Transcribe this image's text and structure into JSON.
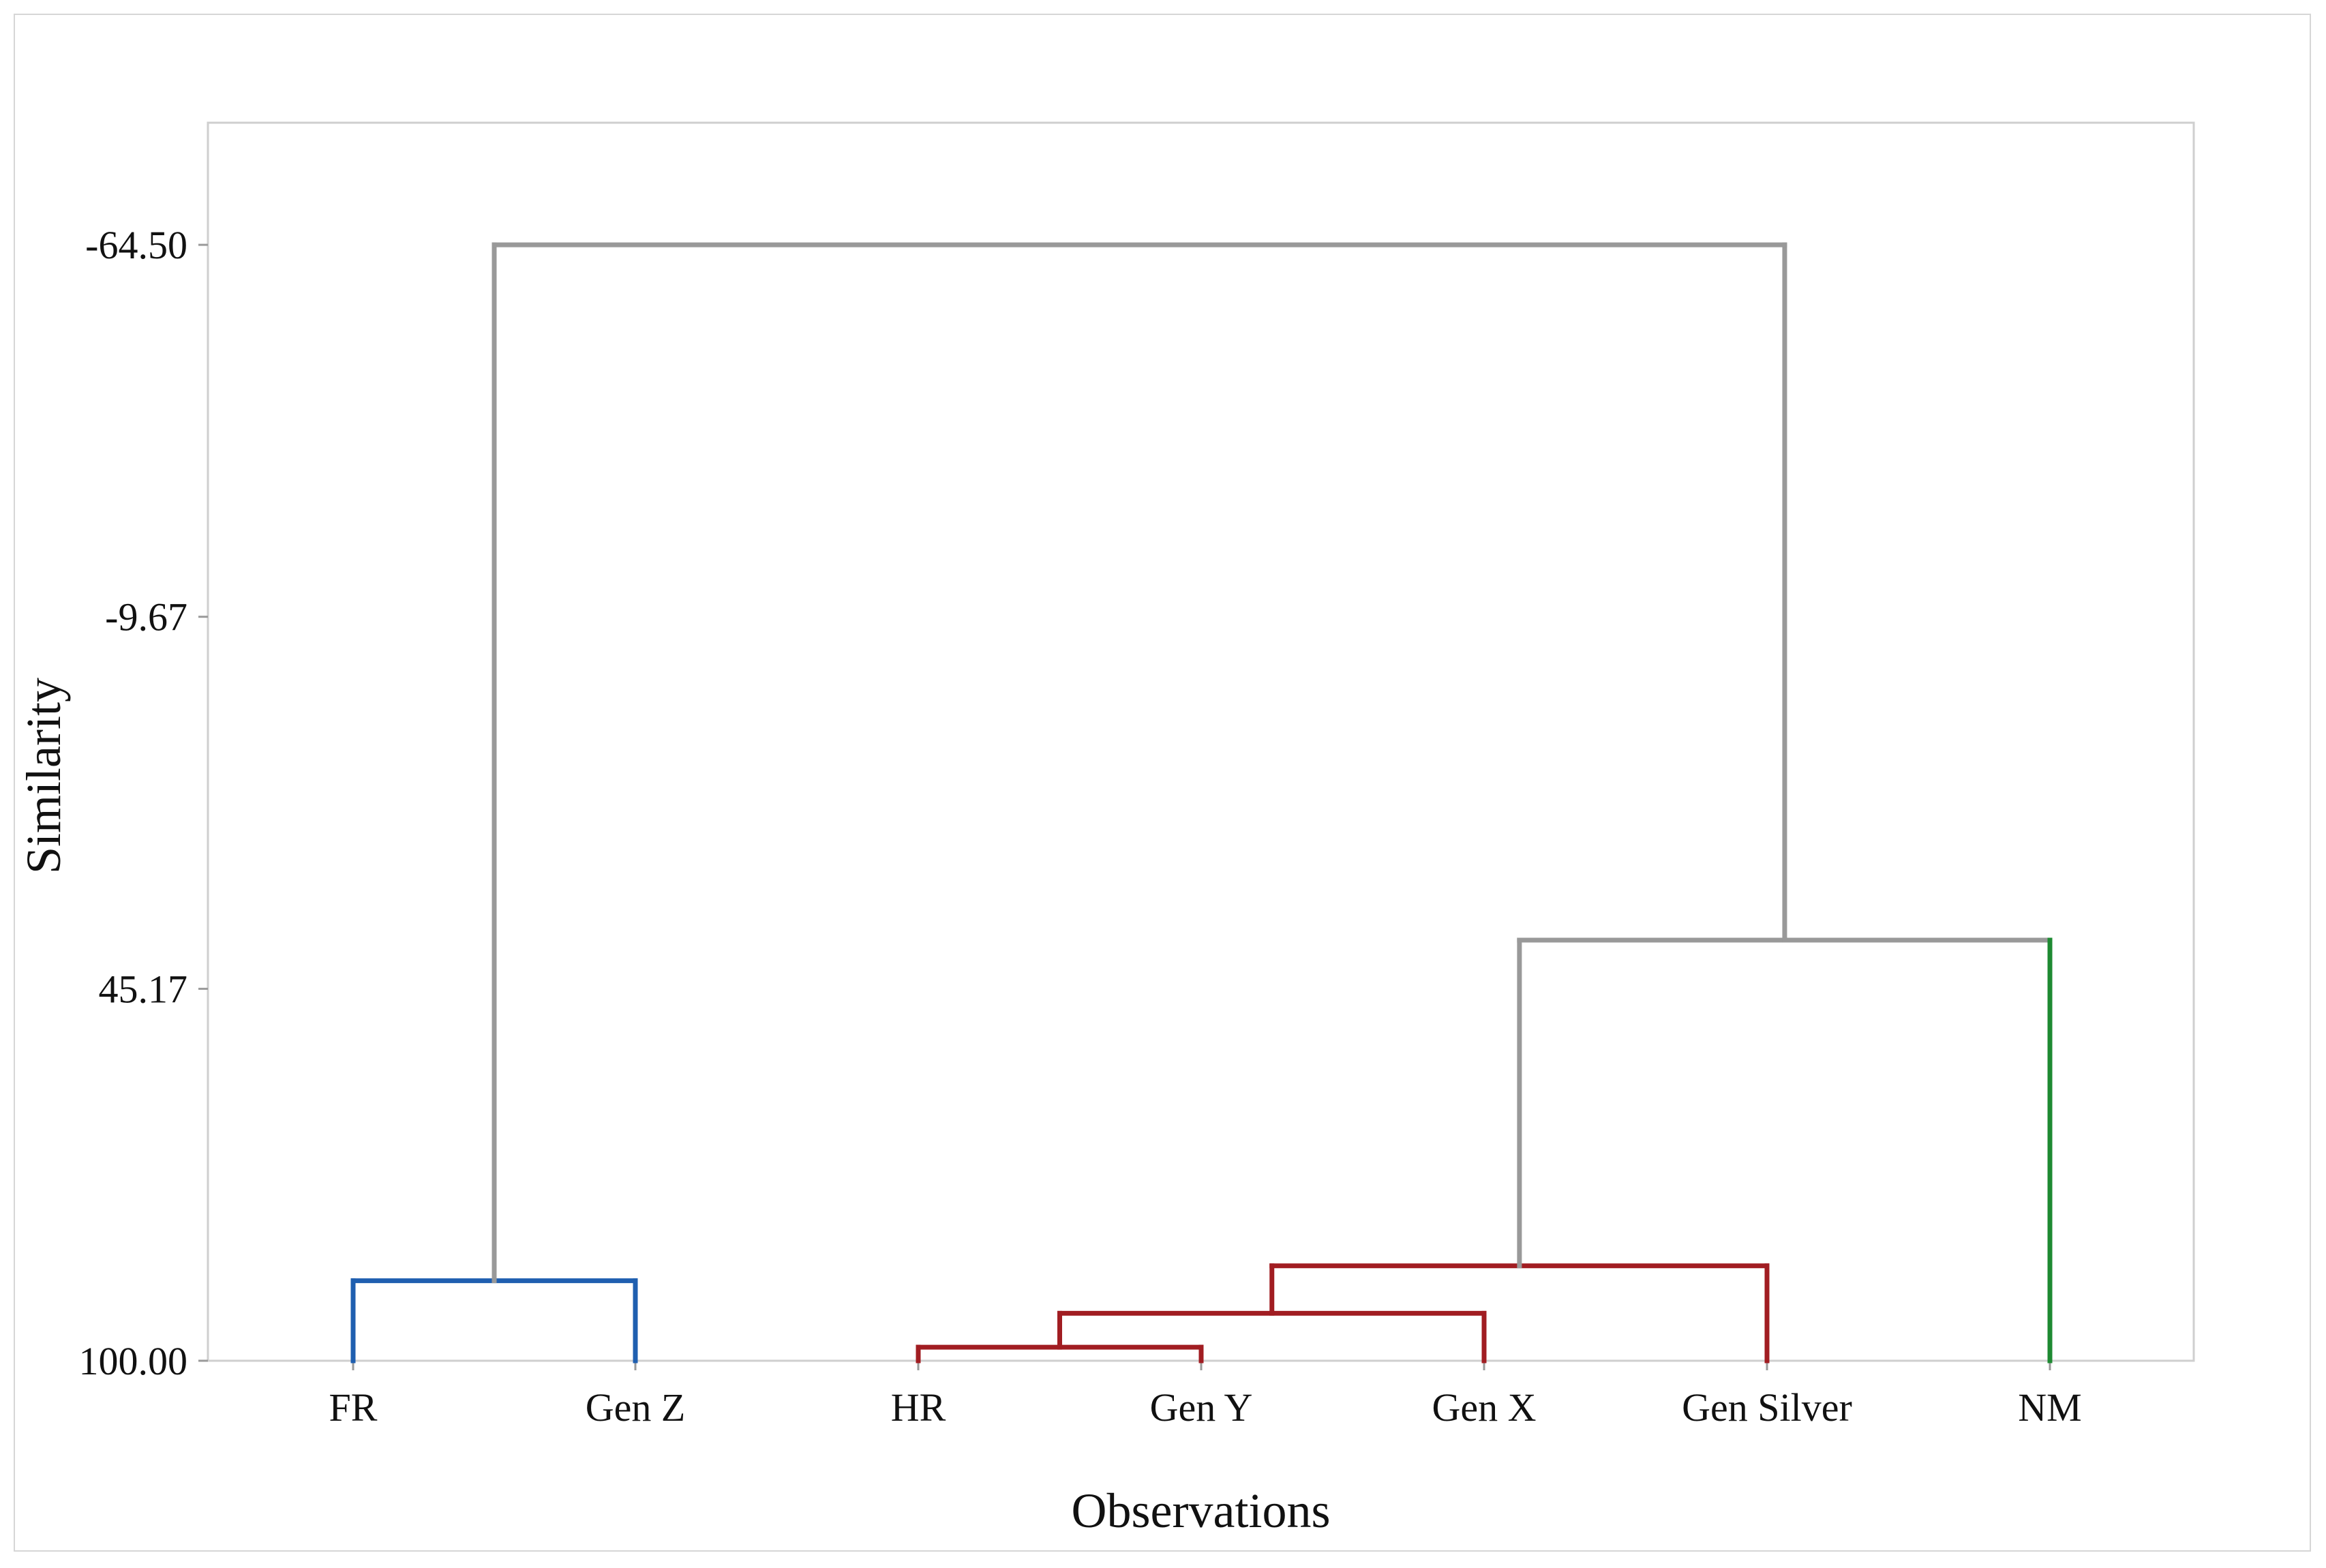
{
  "chart_data": {
    "type": "dendrogram",
    "xlabel": "Observations",
    "ylabel": "Similarity",
    "y_ticks": [
      "-64.50",
      "-9.67",
      "45.17",
      "100.00"
    ],
    "y_tick_values": [
      -64.5,
      -9.67,
      45.17,
      100.0
    ],
    "ylim": [
      -82.5,
      100.0
    ],
    "y_inverted": true,
    "leaves": [
      "FR",
      "Gen Z",
      "HR",
      "Gen Y",
      "Gen X",
      "Gen Silver",
      "NM"
    ],
    "merges": [
      {
        "left": "FR",
        "right": "Gen Z",
        "similarity": 88.2,
        "color": "#1f5fb0"
      },
      {
        "left": "HR",
        "right": "Gen Y",
        "similarity": 98.0,
        "color": "#a11d22"
      },
      {
        "left": "HR+Gen Y",
        "right": "Gen X",
        "similarity": 93.0,
        "color": "#a11d22"
      },
      {
        "left": "HR+Gen Y+Gen X",
        "right": "Gen Silver",
        "similarity": 86.0,
        "color": "#a11d22"
      },
      {
        "left": "HR+Gen Y+Gen X+Gen Silver",
        "right": "NM",
        "similarity": 38.0,
        "color": "#999999"
      },
      {
        "left": "FR+Gen Z",
        "right": "HR+Gen Y+Gen X+Gen Silver+NM",
        "similarity": -64.5,
        "color": "#999999"
      }
    ],
    "leaf_colors": {
      "FR": "#1f5fb0",
      "Gen Z": "#1f5fb0",
      "HR": "#a11d22",
      "Gen Y": "#a11d22",
      "Gen X": "#a11d22",
      "Gen Silver": "#a11d22",
      "NM": "#1e8a32"
    },
    "grid": false
  }
}
